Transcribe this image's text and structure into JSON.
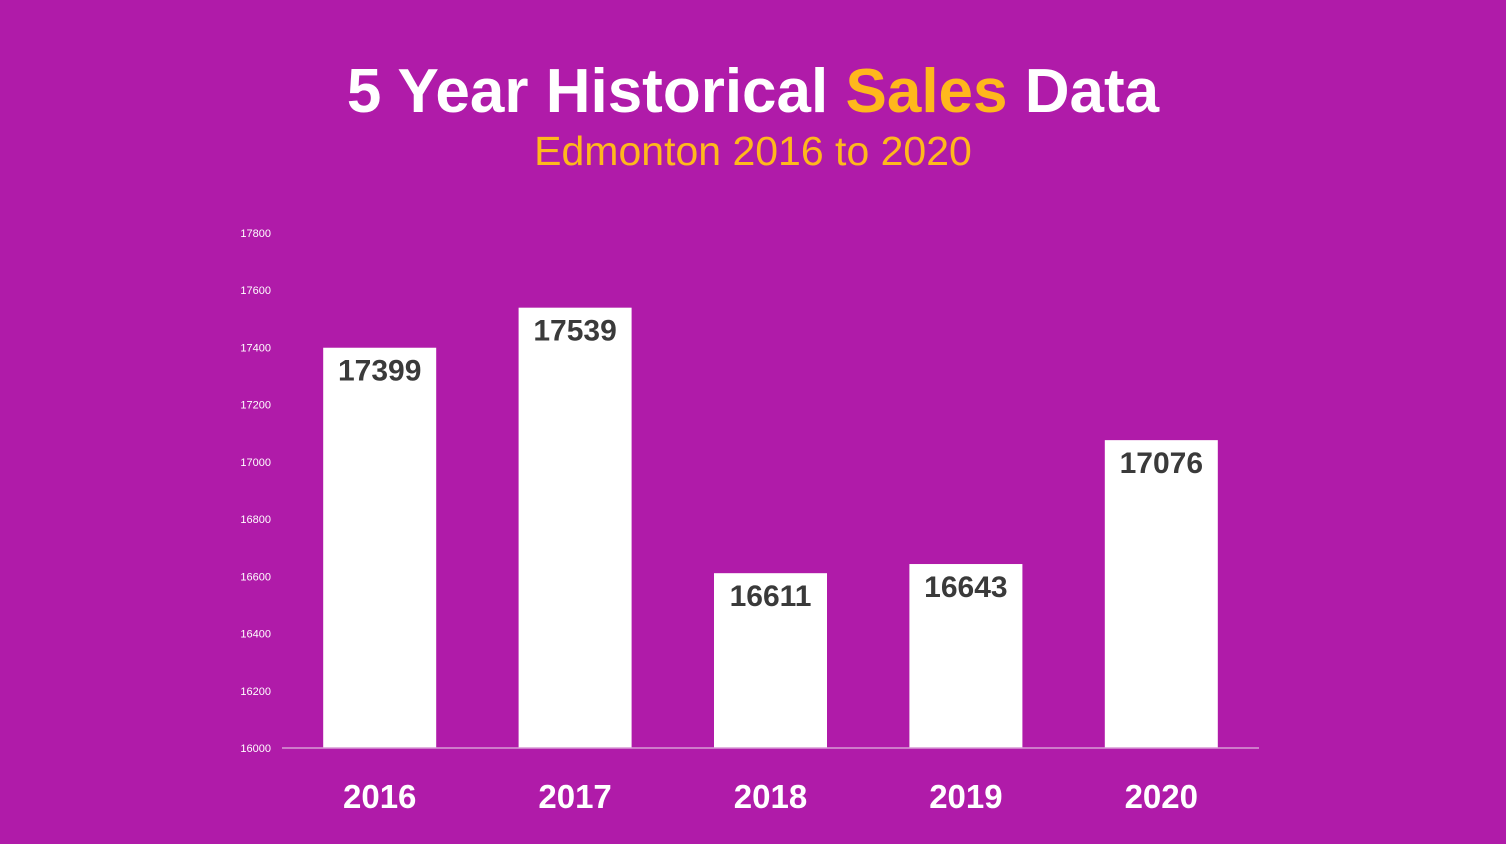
{
  "title": {
    "part1": "5 Year Historical",
    "part2": "Sales",
    "part3": "Data"
  },
  "subtitle": "Edmonton 2016 to 2020",
  "colors": {
    "background": "#b01ba9",
    "accent": "#ffb81c",
    "bar": "#ffffff",
    "value_label": "#3a3a3a"
  },
  "chart_data": {
    "type": "bar",
    "title": "5 Year Historical Sales Data",
    "subtitle": "Edmonton 2016 to 2020",
    "categories": [
      "2016",
      "2017",
      "2018",
      "2019",
      "2020"
    ],
    "values": [
      17399,
      17539,
      16611,
      16643,
      17076
    ],
    "ylim": [
      16000,
      17800
    ],
    "yticks": [
      16000,
      16200,
      16400,
      16600,
      16800,
      17000,
      17200,
      17400,
      17600,
      17800
    ],
    "xlabel": "",
    "ylabel": "",
    "grid": false,
    "legend": "none",
    "data_labels": true
  }
}
